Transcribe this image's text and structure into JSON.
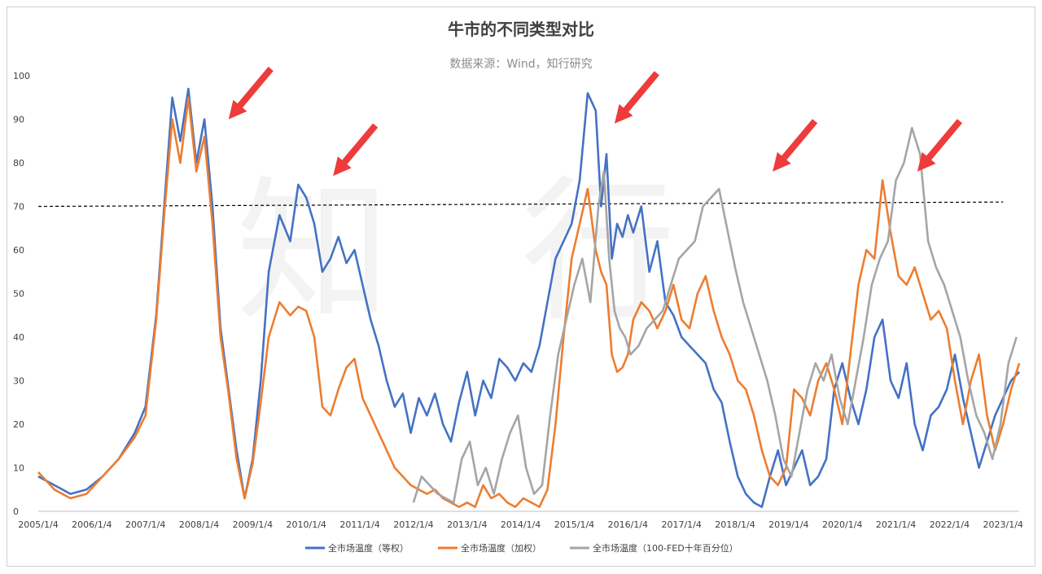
{
  "chart_data": {
    "type": "line",
    "title": "牛市的不同类型对比",
    "subtitle": "数据来源：Wind，知行研究",
    "ylim": [
      0,
      100
    ],
    "y_ticks": [
      0,
      10,
      20,
      30,
      40,
      50,
      60,
      70,
      80,
      90,
      100
    ],
    "x_tick_labels": [
      "2005/1/4",
      "2006/1/4",
      "2007/1/4",
      "2008/1/4",
      "2009/1/4",
      "2010/1/4",
      "2011/1/4",
      "2012/1/4",
      "2013/1/4",
      "2014/1/4",
      "2015/1/4",
      "2016/1/4",
      "2017/1/4",
      "2018/1/4",
      "2019/1/4",
      "2020/1/4",
      "2021/1/4",
      "2022/1/4",
      "2023/1/4"
    ],
    "xlim": [
      2005.0,
      2023.3
    ],
    "grid": false,
    "legend_position": "bottom",
    "reference_line": {
      "style": "dashed",
      "color": "#000000",
      "y_start": 70,
      "y_end": 71
    },
    "watermark": "知行",
    "annotations": [
      {
        "type": "arrow",
        "color": "#ee3b3b",
        "points_to": {
          "x": 2008.55,
          "y": 90
        }
      },
      {
        "type": "arrow",
        "color": "#ee3b3b",
        "points_to": {
          "x": 2010.5,
          "y": 77
        }
      },
      {
        "type": "arrow",
        "color": "#ee3b3b",
        "points_to": {
          "x": 2015.75,
          "y": 89
        }
      },
      {
        "type": "arrow",
        "color": "#ee3b3b",
        "points_to": {
          "x": 2018.7,
          "y": 78
        }
      },
      {
        "type": "arrow",
        "color": "#ee3b3b",
        "points_to": {
          "x": 2021.4,
          "y": 78
        }
      }
    ],
    "series": [
      {
        "name": "全市场温度（等权）",
        "color": "#4472c4",
        "x": [
          2005.0,
          2005.3,
          2005.6,
          2005.9,
          2006.2,
          2006.5,
          2006.8,
          2007.0,
          2007.2,
          2007.35,
          2007.5,
          2007.65,
          2007.8,
          2007.95,
          2008.1,
          2008.25,
          2008.4,
          2008.55,
          2008.7,
          2008.85,
          2009.0,
          2009.15,
          2009.3,
          2009.5,
          2009.7,
          2009.85,
          2010.0,
          2010.15,
          2010.3,
          2010.45,
          2010.6,
          2010.75,
          2010.9,
          2011.05,
          2011.2,
          2011.35,
          2011.5,
          2011.65,
          2011.8,
          2011.95,
          2012.1,
          2012.25,
          2012.4,
          2012.55,
          2012.7,
          2012.85,
          2013.0,
          2013.15,
          2013.3,
          2013.45,
          2013.6,
          2013.75,
          2013.9,
          2014.05,
          2014.2,
          2014.35,
          2014.5,
          2014.65,
          2014.8,
          2014.95,
          2015.1,
          2015.25,
          2015.4,
          2015.5,
          2015.6,
          2015.7,
          2015.8,
          2015.9,
          2016.0,
          2016.1,
          2016.25,
          2016.4,
          2016.55,
          2016.7,
          2016.85,
          2017.0,
          2017.15,
          2017.3,
          2017.45,
          2017.6,
          2017.75,
          2017.9,
          2018.05,
          2018.2,
          2018.35,
          2018.5,
          2018.65,
          2018.8,
          2018.95,
          2019.1,
          2019.25,
          2019.4,
          2019.55,
          2019.7,
          2019.85,
          2020.0,
          2020.15,
          2020.3,
          2020.45,
          2020.6,
          2020.75,
          2020.9,
          2021.05,
          2021.2,
          2021.35,
          2021.5,
          2021.65,
          2021.8,
          2021.95,
          2022.1,
          2022.25,
          2022.4,
          2022.55,
          2022.7,
          2022.85,
          2023.0,
          2023.15,
          2023.3
        ],
        "y": [
          8,
          6,
          4,
          5,
          8,
          12,
          18,
          24,
          45,
          70,
          95,
          85,
          97,
          80,
          90,
          70,
          42,
          28,
          14,
          3,
          12,
          30,
          55,
          68,
          62,
          75,
          72,
          66,
          55,
          58,
          63,
          57,
          60,
          52,
          44,
          38,
          30,
          24,
          27,
          18,
          26,
          22,
          27,
          20,
          16,
          25,
          32,
          22,
          30,
          26,
          35,
          33,
          30,
          34,
          32,
          38,
          48,
          58,
          62,
          66,
          76,
          96,
          92,
          70,
          82,
          58,
          66,
          63,
          68,
          64,
          70,
          55,
          62,
          48,
          45,
          40,
          38,
          36,
          34,
          28,
          25,
          16,
          8,
          4,
          2,
          1,
          8,
          14,
          6,
          10,
          14,
          6,
          8,
          12,
          28,
          34,
          26,
          20,
          28,
          40,
          44,
          30,
          26,
          34,
          20,
          14,
          22,
          24,
          28,
          36,
          26,
          18,
          10,
          16,
          22,
          26,
          30,
          32
        ],
        "style": "solid"
      },
      {
        "name": "全市场温度（加权）",
        "color": "#ed7d31",
        "x": [
          2005.0,
          2005.3,
          2005.6,
          2005.9,
          2006.2,
          2006.5,
          2006.8,
          2007.0,
          2007.2,
          2007.35,
          2007.5,
          2007.65,
          2007.8,
          2007.95,
          2008.1,
          2008.25,
          2008.4,
          2008.55,
          2008.7,
          2008.85,
          2009.0,
          2009.15,
          2009.3,
          2009.5,
          2009.7,
          2009.85,
          2010.0,
          2010.15,
          2010.3,
          2010.45,
          2010.6,
          2010.75,
          2010.9,
          2011.05,
          2011.2,
          2011.35,
          2011.5,
          2011.65,
          2011.8,
          2011.95,
          2012.1,
          2012.25,
          2012.4,
          2012.55,
          2012.7,
          2012.85,
          2013.0,
          2013.15,
          2013.3,
          2013.45,
          2013.6,
          2013.75,
          2013.9,
          2014.05,
          2014.2,
          2014.35,
          2014.5,
          2014.65,
          2014.8,
          2014.95,
          2015.1,
          2015.25,
          2015.4,
          2015.5,
          2015.6,
          2015.7,
          2015.8,
          2015.9,
          2016.0,
          2016.1,
          2016.25,
          2016.4,
          2016.55,
          2016.7,
          2016.85,
          2017.0,
          2017.15,
          2017.3,
          2017.45,
          2017.6,
          2017.75,
          2017.9,
          2018.05,
          2018.2,
          2018.35,
          2018.5,
          2018.65,
          2018.8,
          2018.95,
          2019.1,
          2019.25,
          2019.4,
          2019.55,
          2019.7,
          2019.85,
          2020.0,
          2020.15,
          2020.3,
          2020.45,
          2020.6,
          2020.75,
          2020.9,
          2021.05,
          2021.2,
          2021.35,
          2021.5,
          2021.65,
          2021.8,
          2021.95,
          2022.1,
          2022.25,
          2022.4,
          2022.55,
          2022.7,
          2022.85,
          2023.0,
          2023.15,
          2023.3
        ],
        "y": [
          9,
          5,
          3,
          4,
          8,
          12,
          17,
          22,
          44,
          68,
          90,
          80,
          95,
          78,
          86,
          66,
          40,
          27,
          12,
          3,
          11,
          25,
          40,
          48,
          45,
          47,
          46,
          40,
          24,
          22,
          28,
          33,
          35,
          26,
          22,
          18,
          14,
          10,
          8,
          6,
          5,
          4,
          5,
          3,
          2,
          1,
          2,
          1,
          6,
          3,
          4,
          2,
          1,
          3,
          2,
          1,
          5,
          20,
          40,
          58,
          66,
          74,
          60,
          55,
          52,
          36,
          32,
          33,
          36,
          44,
          48,
          46,
          42,
          46,
          52,
          44,
          42,
          50,
          54,
          46,
          40,
          36,
          30,
          28,
          22,
          14,
          8,
          6,
          10,
          28,
          26,
          22,
          30,
          34,
          28,
          20,
          36,
          52,
          60,
          58,
          76,
          64,
          54,
          52,
          56,
          50,
          44,
          46,
          42,
          30,
          20,
          30,
          36,
          22,
          14,
          20,
          28,
          34
        ],
        "style": "solid"
      },
      {
        "name": "全市场温度（100-FED十年百分位）",
        "color": "#a5a5a5",
        "x": [
          2012.0,
          2012.15,
          2012.3,
          2012.45,
          2012.6,
          2012.75,
          2012.9,
          2013.05,
          2013.2,
          2013.35,
          2013.5,
          2013.65,
          2013.8,
          2013.95,
          2014.1,
          2014.25,
          2014.4,
          2014.55,
          2014.7,
          2014.85,
          2015.0,
          2015.15,
          2015.3,
          2015.45,
          2015.55,
          2015.65,
          2015.75,
          2015.85,
          2015.95,
          2016.05,
          2016.2,
          2016.35,
          2016.5,
          2016.65,
          2016.8,
          2016.95,
          2017.1,
          2017.25,
          2017.4,
          2017.55,
          2017.7,
          2017.85,
          2018.0,
          2018.15,
          2018.3,
          2018.45,
          2018.6,
          2018.75,
          2018.9,
          2019.05,
          2019.2,
          2019.35,
          2019.5,
          2019.65,
          2019.8,
          2019.95,
          2020.1,
          2020.25,
          2020.4,
          2020.55,
          2020.7,
          2020.85,
          2021.0,
          2021.15,
          2021.3,
          2021.45,
          2021.6,
          2021.75,
          2021.9,
          2022.05,
          2022.2,
          2022.35,
          2022.5,
          2022.65,
          2022.8,
          2022.95,
          2023.1,
          2023.25
        ],
        "y": [
          2,
          8,
          6,
          4,
          3,
          2,
          12,
          16,
          6,
          10,
          4,
          12,
          18,
          22,
          10,
          4,
          6,
          22,
          36,
          44,
          52,
          58,
          48,
          70,
          78,
          58,
          46,
          42,
          40,
          36,
          38,
          42,
          44,
          46,
          52,
          58,
          60,
          62,
          70,
          72,
          74,
          65,
          56,
          48,
          42,
          36,
          30,
          22,
          12,
          8,
          18,
          28,
          34,
          30,
          36,
          26,
          20,
          30,
          40,
          52,
          58,
          62,
          76,
          80,
          88,
          82,
          62,
          56,
          52,
          46,
          40,
          30,
          22,
          18,
          12,
          20,
          34,
          40
        ],
        "style": "solid"
      }
    ]
  }
}
